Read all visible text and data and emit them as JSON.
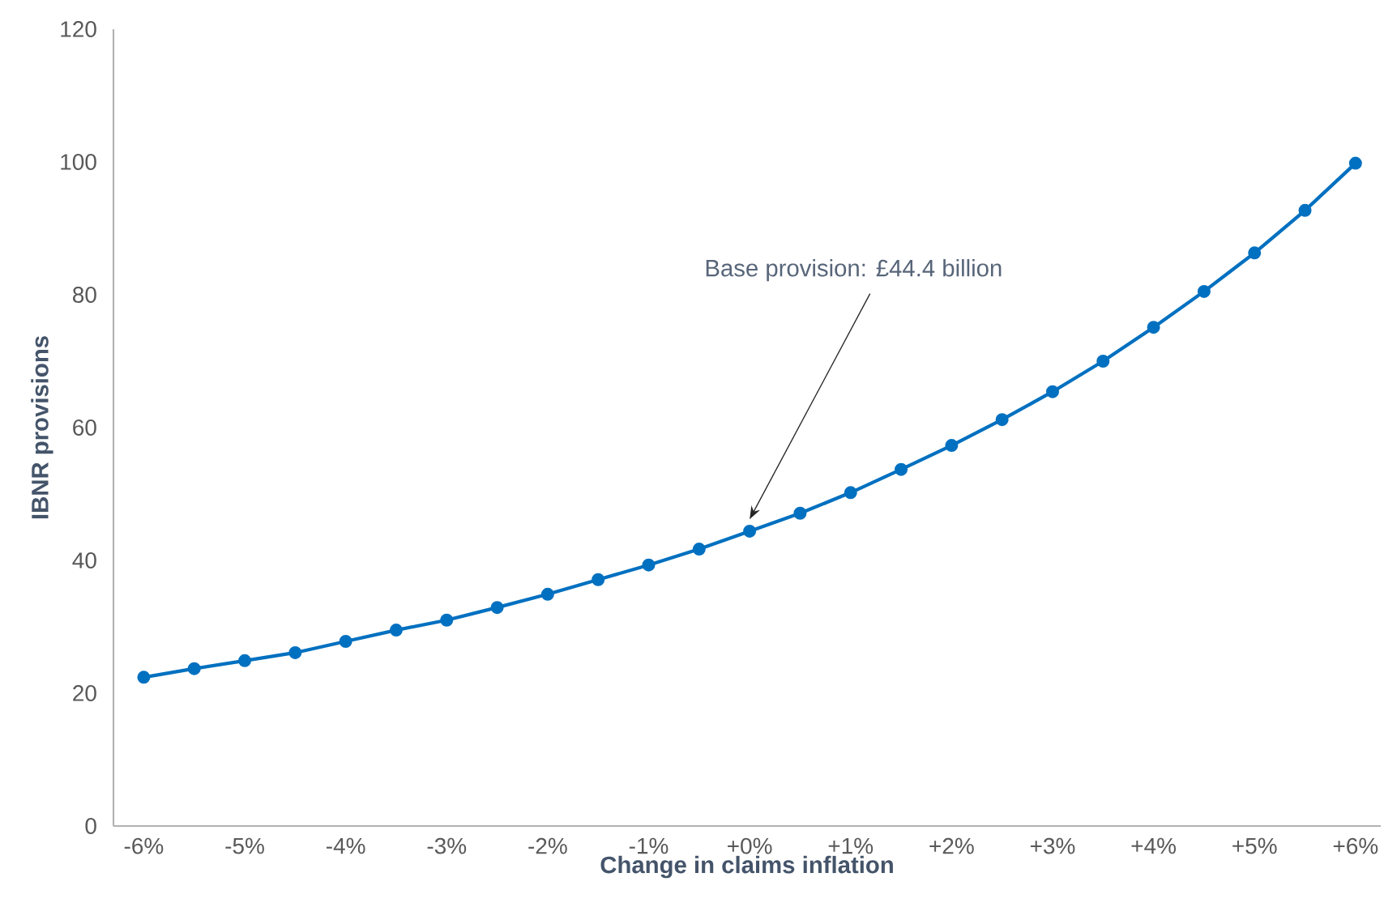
{
  "chart_data": {
    "type": "line",
    "xlabel": "Change in claims inflation",
    "ylabel": "IBNR provisions",
    "x": [
      -6,
      -5.5,
      -5,
      -4.5,
      -4,
      -3.5,
      -3,
      -2.5,
      -2,
      -1.5,
      -1,
      -0.5,
      0,
      0.5,
      1,
      1.5,
      2,
      2.5,
      3,
      3.5,
      4,
      4.5,
      5,
      5.5,
      6
    ],
    "series": [
      {
        "color": "#0070c0",
        "values": [
          22.4,
          23.7,
          24.9,
          26.1,
          27.8,
          29.5,
          31.0,
          32.9,
          34.9,
          37.1,
          39.3,
          41.7,
          44.4,
          47.1,
          50.2,
          53.7,
          57.3,
          61.2,
          65.4,
          70.0,
          75.1,
          80.5,
          86.3,
          92.7,
          99.8
        ]
      }
    ],
    "xlim": [
      -6.3,
      6.25
    ],
    "ylim": [
      0,
      120
    ],
    "xticks": [
      {
        "value": -6,
        "label": "-6%"
      },
      {
        "value": -5,
        "label": "-5%"
      },
      {
        "value": -4,
        "label": "-4%"
      },
      {
        "value": -3,
        "label": "-3%"
      },
      {
        "value": -2,
        "label": "-2%"
      },
      {
        "value": -1,
        "label": "-1%"
      },
      {
        "value": 0,
        "label": "+0%"
      },
      {
        "value": 1,
        "label": "+1%"
      },
      {
        "value": 2,
        "label": "+2%"
      },
      {
        "value": 3,
        "label": "+3%"
      },
      {
        "value": 4,
        "label": "+4%"
      },
      {
        "value": 5,
        "label": "+5%"
      },
      {
        "value": 6,
        "label": "+6%"
      }
    ],
    "yticks": [
      0,
      20,
      40,
      60,
      80,
      100,
      120
    ],
    "annotations": [
      "Base provision: £44.4 billion"
    ],
    "marker": "circle",
    "line_style": "solid"
  }
}
